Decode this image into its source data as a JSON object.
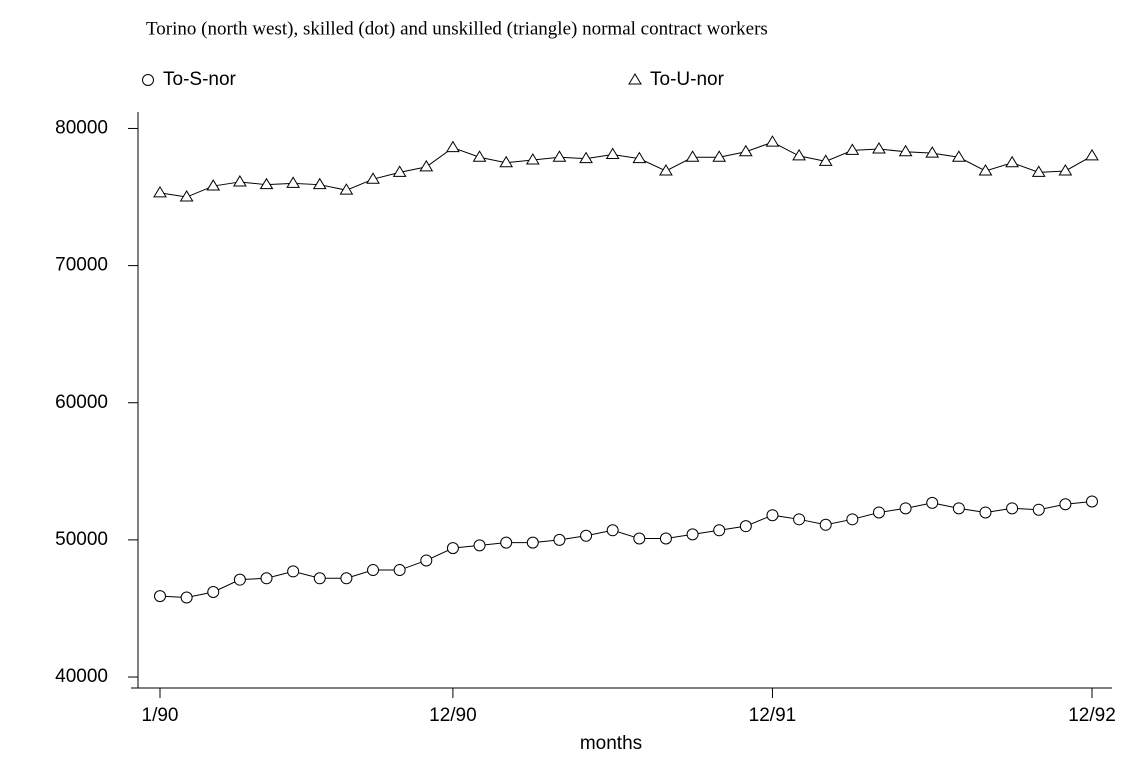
{
  "chart_data": {
    "type": "line",
    "title": "Torino (north west), skilled (dot) and unskilled (triangle) normal contract workers",
    "xlabel": "months",
    "categories": [
      "1/90",
      null,
      null,
      null,
      null,
      null,
      null,
      null,
      null,
      null,
      null,
      "12/90",
      null,
      null,
      null,
      null,
      null,
      null,
      null,
      null,
      null,
      null,
      null,
      "12/91",
      null,
      null,
      null,
      null,
      null,
      null,
      null,
      null,
      null,
      null,
      null,
      "12/92"
    ],
    "series": [
      {
        "name": "To-S-nor",
        "color": "#000000",
        "marker": "circle",
        "values": [
          45900,
          45800,
          46200,
          47100,
          47200,
          47700,
          47200,
          47200,
          47800,
          47800,
          48500,
          49400,
          49600,
          49800,
          49800,
          50000,
          50300,
          50700,
          50100,
          50100,
          50400,
          50700,
          51000,
          51800,
          51500,
          51100,
          51500,
          52000,
          52300,
          52700,
          52300,
          52000,
          52300,
          52200,
          52600,
          52800
        ]
      },
      {
        "name": "To-U-nor",
        "color": "#000000",
        "marker": "triangle",
        "values": [
          75300,
          75000,
          75800,
          76100,
          75900,
          76000,
          75900,
          75500,
          76300,
          76800,
          77200,
          78600,
          77900,
          77500,
          77700,
          77900,
          77800,
          78100,
          77800,
          76900,
          77900,
          77900,
          78300,
          79000,
          78000,
          77600,
          78400,
          78500,
          78300,
          78200,
          77900,
          76900,
          77500,
          76800,
          76900,
          78000
        ]
      }
    ],
    "ylim": [
      39200,
      81200
    ],
    "yticks": [
      40000,
      50000,
      60000,
      70000,
      80000
    ],
    "grid": false,
    "legend": "top"
  }
}
